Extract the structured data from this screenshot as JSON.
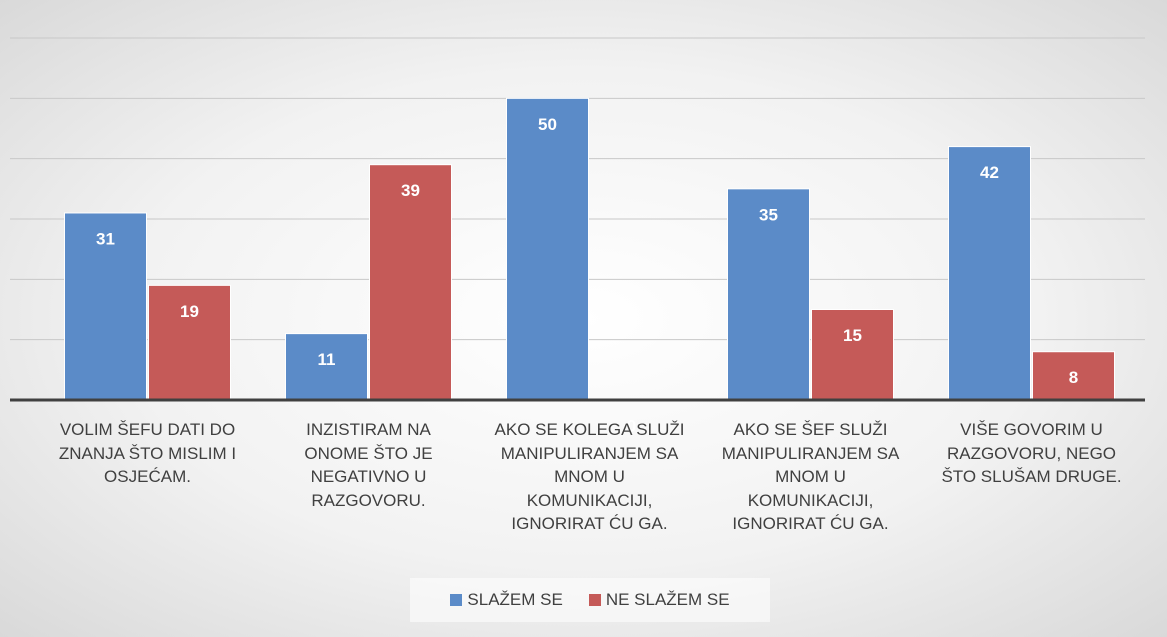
{
  "chart_data": {
    "type": "bar",
    "categories": [
      "VOLIM ŠEFU DATI DO\nZNANJA ŠTO MISLIM I\nOSJEĆAM.",
      "INZISTIRAM NA\nONOME ŠTO JE\nNEGATIVNO U\nRAZGOVORU.",
      "AKO SE KOLEGA SLUŽI\nMANIPULIRANJEM SA\nMNOM U\nKOMUNIKACIJI,\nIGNORIRAT ĆU GA.",
      "AKO SE ŠEF SLUŽI\nMANIPULIRANJEM SA\nMNOM U\nKOMUNIKACIJI,\nIGNORIRAT ĆU GA.",
      "VIŠE GOVORIM U\nRAZGOVORU, NEGO\nŠTO SLUŠAM DRUGE."
    ],
    "series": [
      {
        "name": "SLAŽEM SE",
        "color": "#5b8bc8",
        "values": [
          31,
          11,
          50,
          35,
          42
        ]
      },
      {
        "name": "NE SLAŽEM SE",
        "color": "#c55a58",
        "values": [
          19,
          39,
          0,
          15,
          8
        ]
      }
    ],
    "ylim": [
      0,
      60
    ],
    "yticks": [
      0,
      10,
      20,
      30,
      40,
      50,
      60
    ],
    "grid": true,
    "legend": "bottom"
  }
}
